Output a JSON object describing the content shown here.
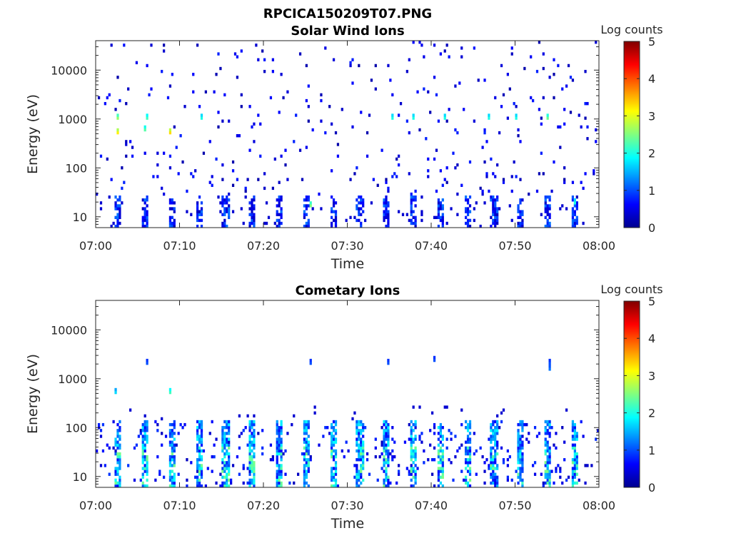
{
  "figure": {
    "title": "RPCICA150209T07.PNG"
  },
  "chart_data": [
    {
      "type": "heatmap",
      "title": "Solar Wind Ions",
      "xlabel": "Time",
      "ylabel": "Energy (eV)",
      "xlim": [
        "07:00",
        "08:00"
      ],
      "xticks": [
        "07:00",
        "07:10",
        "07:20",
        "07:30",
        "07:40",
        "07:50",
        "08:00"
      ],
      "ylim": [
        6,
        40000
      ],
      "yscale": "log",
      "yticks": [
        {
          "value": 10,
          "label": "10"
        },
        {
          "value": 100,
          "label": "100"
        },
        {
          "value": 1000,
          "label": "1000"
        },
        {
          "value": 10000,
          "label": "10000"
        }
      ],
      "colorbar": {
        "label": "Log counts",
        "range": [
          0,
          5
        ],
        "ticks": [
          "0",
          "1",
          "2",
          "3",
          "4",
          "5"
        ],
        "colormap": "jet"
      },
      "pattern": {
        "description_free_values": true,
        "scan_period_min": 3.2,
        "low_energy_band_eV": [
          6,
          28
        ],
        "bright_features": [
          {
            "t_min": 2.5,
            "e_eV": 1000,
            "level": 2.6
          },
          {
            "t_min": 2.6,
            "e_eV": 500,
            "level": 3.2
          },
          {
            "t_min": 5.9,
            "e_eV": 600,
            "level": 2.3
          },
          {
            "t_min": 6.1,
            "e_eV": 1000,
            "level": 2.2
          },
          {
            "t_min": 8.9,
            "e_eV": 550,
            "level": 3.3
          },
          {
            "t_min": 12.5,
            "e_eV": 1000,
            "level": 2.0
          },
          {
            "t_min": 25.5,
            "e_eV": 18,
            "level": 2.5
          },
          {
            "t_min": 35.3,
            "e_eV": 1100,
            "level": 2.0
          },
          {
            "t_min": 37.8,
            "e_eV": 1000,
            "level": 2.0
          },
          {
            "t_min": 41.6,
            "e_eV": 1000,
            "level": 2.0
          },
          {
            "t_min": 46.8,
            "e_eV": 1000,
            "level": 2.0
          },
          {
            "t_min": 50.2,
            "e_eV": 1000,
            "level": 2.0
          },
          {
            "t_min": 53.8,
            "e_eV": 1100,
            "level": 2.4
          },
          {
            "t_min": 57.0,
            "e_eV": 20,
            "level": 2.0
          }
        ]
      }
    },
    {
      "type": "heatmap",
      "title": "Cometary Ions",
      "xlabel": "Time",
      "ylabel": "Energy (eV)",
      "xlim": [
        "07:00",
        "08:00"
      ],
      "xticks": [
        "07:00",
        "07:10",
        "07:20",
        "07:30",
        "07:40",
        "07:50",
        "08:00"
      ],
      "ylim": [
        6,
        40000
      ],
      "yscale": "log",
      "yticks": [
        {
          "value": 10,
          "label": "10"
        },
        {
          "value": 100,
          "label": "100"
        },
        {
          "value": 1000,
          "label": "1000"
        },
        {
          "value": 10000,
          "label": "10000"
        }
      ],
      "colorbar": {
        "label": "Log counts",
        "range": [
          0,
          5
        ],
        "ticks": [
          "0",
          "1",
          "2",
          "3",
          "4",
          "5"
        ],
        "colormap": "jet"
      },
      "pattern": {
        "scan_period_min": 3.2,
        "active_band_eV": [
          6,
          150
        ],
        "peak_level": 2.8,
        "sparse_features": [
          {
            "t_min": 2.4,
            "e_eV": 500,
            "level": 1.7
          },
          {
            "t_min": 6.2,
            "e_eV": 2000,
            "level": 1.0
          },
          {
            "t_min": 8.8,
            "e_eV": 500,
            "level": 2.2
          },
          {
            "t_min": 25.5,
            "e_eV": 2000,
            "level": 1.0
          },
          {
            "t_min": 34.8,
            "e_eV": 2000,
            "level": 1.0
          },
          {
            "t_min": 40.3,
            "e_eV": 2500,
            "level": 1.0
          },
          {
            "t_min": 54.0,
            "e_eV": 2000,
            "level": 1.0
          },
          {
            "t_min": 54.2,
            "e_eV": 1500,
            "level": 1.2
          }
        ]
      }
    }
  ]
}
